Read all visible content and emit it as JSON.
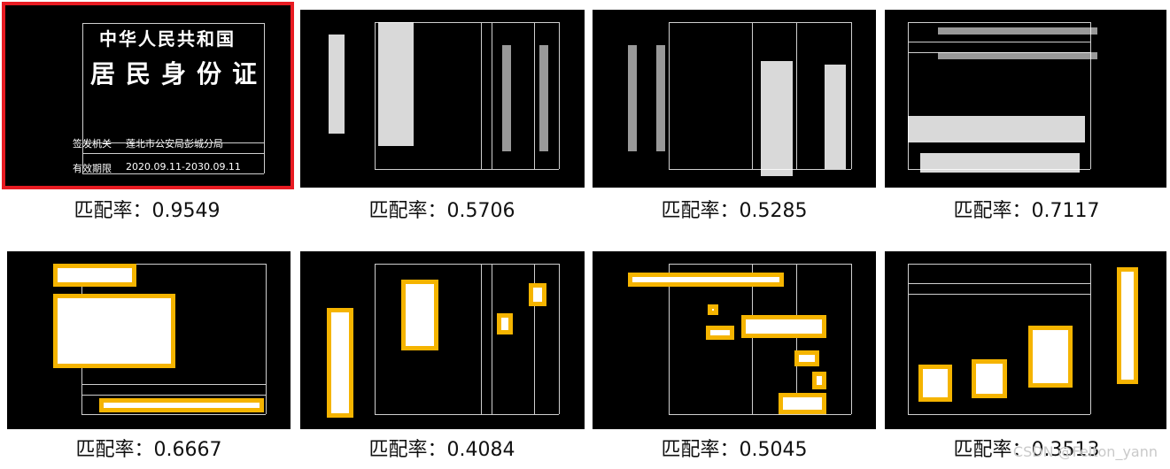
{
  "top_row": [
    {
      "caption": "匹配率：0.9549",
      "selected": true,
      "title": "中华人民共和国",
      "subtitle": "居民身份证",
      "authority_label": "签发机关",
      "authority_value": "莲北市公安局彭城分局",
      "validity_label": "有效期限",
      "validity_value": "2020.09.11-2030.09.11"
    },
    {
      "caption": "匹配率：0.5706"
    },
    {
      "caption": "匹配率：0.5285"
    },
    {
      "caption": "匹配率：0.7117"
    }
  ],
  "bottom_row": [
    {
      "caption": "匹配率：0.6667"
    },
    {
      "caption": "匹配率：0.4084"
    },
    {
      "caption": "匹配率：0.5045"
    },
    {
      "caption": "匹配率：0.3513"
    }
  ],
  "watermark": "CSDN @Felton_yann",
  "colors": {
    "highlight": "#e81b22",
    "box_border": "#f5b400",
    "panel_bg": "#000000"
  }
}
